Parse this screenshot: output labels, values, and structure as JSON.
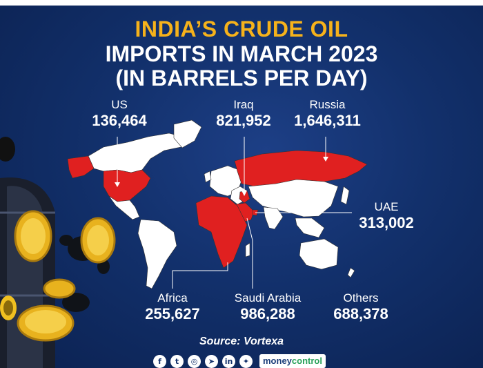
{
  "title": {
    "line1": "INDIA’S CRUDE OIL",
    "line2": "IMPORTS IN MARCH 2023",
    "line3": "(IN BARRELS PER DAY)"
  },
  "regions": [
    {
      "name": "US",
      "value": "136,464"
    },
    {
      "name": "Iraq",
      "value": "821,952"
    },
    {
      "name": "Russia",
      "value": "1,646,311"
    },
    {
      "name": "UAE",
      "value": "313,002"
    },
    {
      "name": "Africa",
      "value": "255,627"
    },
    {
      "name": "Saudi Arabia",
      "value": "986,288"
    },
    {
      "name": "Others",
      "value": "688,378"
    }
  ],
  "source": "Source: Vortexa",
  "social_icons": [
    "facebook-icon",
    "twitter-icon",
    "instagram-icon",
    "telegram-icon",
    "linkedin-icon",
    "koo-icon"
  ],
  "brand": {
    "part1": "money",
    "part2": "control"
  },
  "colors": {
    "highlight": "#e02020",
    "accent": "#f6b21b",
    "background": "#12306b"
  }
}
